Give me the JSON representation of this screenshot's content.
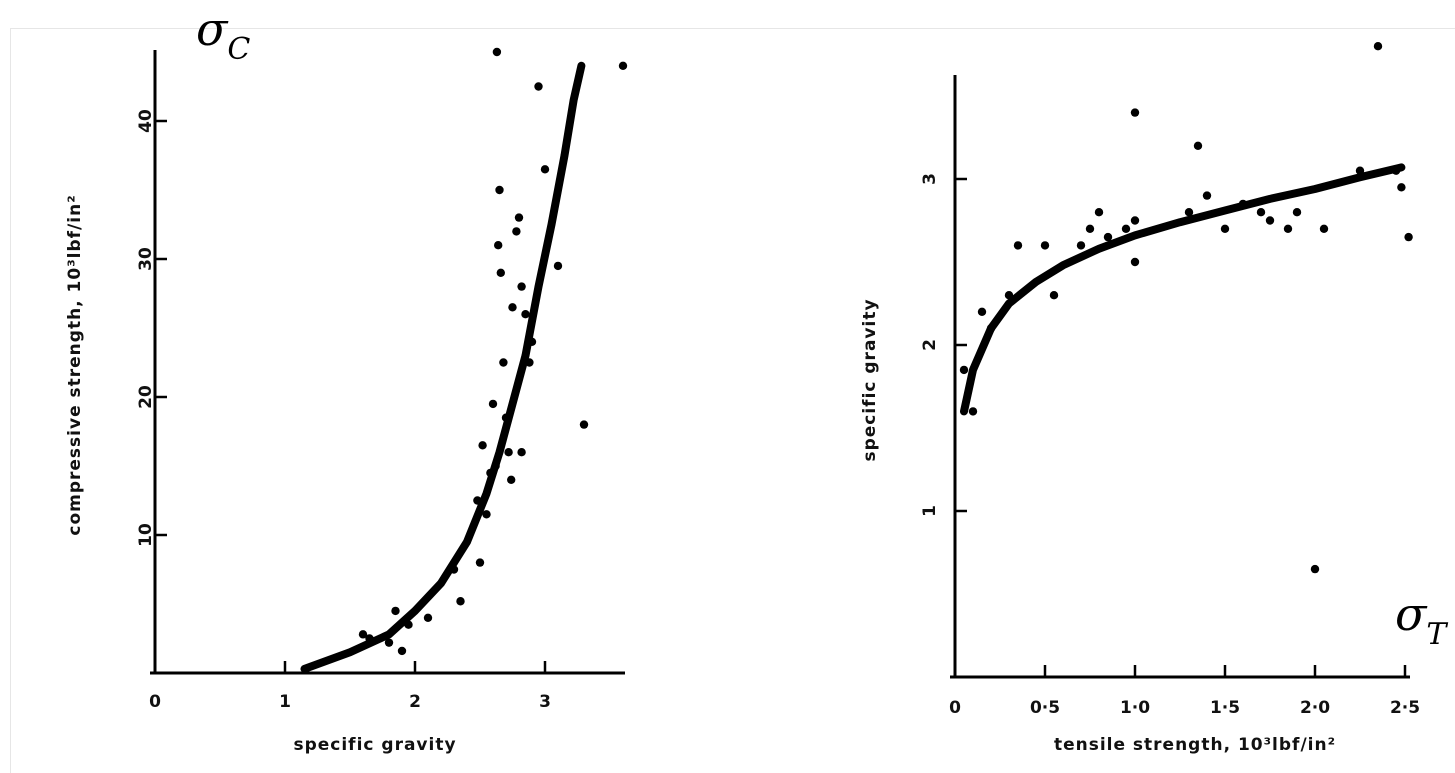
{
  "chart_data": [
    {
      "type": "scatter",
      "title": "",
      "corner_label": "σ",
      "corner_label_sub": "C",
      "xlabel": "specific gravity",
      "ylabel": "compressive strength, 10³lbf/in²",
      "xlim": [
        0,
        3.7
      ],
      "ylim": [
        0,
        45
      ],
      "x_ticks": [
        {
          "value": 0,
          "label": "0"
        },
        {
          "value": 1,
          "label": "1"
        },
        {
          "value": 2,
          "label": "2"
        },
        {
          "value": 3,
          "label": "3"
        }
      ],
      "y_ticks": [
        {
          "value": 10,
          "label": "10"
        },
        {
          "value": 20,
          "label": "20"
        },
        {
          "value": 30,
          "label": "30"
        },
        {
          "value": 40,
          "label": "40"
        }
      ],
      "grid": false,
      "series": [
        {
          "values": [
            [
              1.6,
              2.8
            ],
            [
              1.65,
              2.5
            ],
            [
              1.8,
              2.2
            ],
            [
              1.85,
              4.5
            ],
            [
              1.9,
              1.6
            ],
            [
              1.95,
              3.5
            ],
            [
              2.1,
              4.0
            ],
            [
              2.3,
              7.5
            ],
            [
              2.35,
              5.2
            ],
            [
              2.5,
              8.0
            ],
            [
              2.48,
              12.5
            ],
            [
              2.52,
              16.5
            ],
            [
              2.55,
              11.5
            ],
            [
              2.58,
              14.5
            ],
            [
              2.6,
              19.5
            ],
            [
              2.62,
              15.0
            ],
            [
              2.63,
              45.0
            ],
            [
              2.65,
              35.0
            ],
            [
              2.64,
              31.0
            ],
            [
              2.66,
              29.0
            ],
            [
              2.68,
              22.5
            ],
            [
              2.7,
              18.5
            ],
            [
              2.72,
              16.0
            ],
            [
              2.74,
              14.0
            ],
            [
              2.75,
              26.5
            ],
            [
              2.78,
              32.0
            ],
            [
              2.8,
              33.0
            ],
            [
              2.82,
              28.0
            ],
            [
              2.85,
              26.0
            ],
            [
              2.88,
              22.5
            ],
            [
              2.82,
              16.0
            ],
            [
              2.9,
              24.0
            ],
            [
              2.95,
              42.5
            ],
            [
              3.0,
              36.5
            ],
            [
              3.1,
              29.5
            ],
            [
              3.3,
              18.0
            ],
            [
              3.6,
              44.0
            ]
          ]
        }
      ],
      "fit_curve": [
        [
          1.15,
          0.3
        ],
        [
          1.5,
          1.5
        ],
        [
          1.8,
          2.8
        ],
        [
          2.0,
          4.5
        ],
        [
          2.2,
          6.5
        ],
        [
          2.4,
          9.5
        ],
        [
          2.55,
          13.0
        ],
        [
          2.65,
          16.0
        ],
        [
          2.75,
          19.5
        ],
        [
          2.85,
          23.0
        ],
        [
          2.95,
          28.0
        ],
        [
          3.05,
          32.5
        ],
        [
          3.15,
          37.5
        ],
        [
          3.22,
          41.5
        ],
        [
          3.28,
          44.0
        ]
      ]
    },
    {
      "type": "scatter",
      "title": "",
      "corner_label": "σ",
      "corner_label_sub": "T",
      "xlabel": "tensile strength, 10³lbf/in²",
      "ylabel": "specific gravity",
      "xlim": [
        0,
        2.5
      ],
      "ylim": [
        0,
        3.8
      ],
      "x_ticks": [
        {
          "value": 0,
          "label": "0"
        },
        {
          "value": 0.5,
          "label": "0·5"
        },
        {
          "value": 1.0,
          "label": "1·0"
        },
        {
          "value": 1.5,
          "label": "1·5"
        },
        {
          "value": 2.0,
          "label": "2·0"
        },
        {
          "value": 2.5,
          "label": "2·5"
        }
      ],
      "y_ticks": [
        {
          "value": 1,
          "label": "1"
        },
        {
          "value": 2,
          "label": "2"
        },
        {
          "value": 3,
          "label": "3"
        }
      ],
      "grid": false,
      "series": [
        {
          "values": [
            [
              0.05,
              1.85
            ],
            [
              0.1,
              1.6
            ],
            [
              0.15,
              2.2
            ],
            [
              0.2,
              2.1
            ],
            [
              0.3,
              2.3
            ],
            [
              0.35,
              2.6
            ],
            [
              0.5,
              2.6
            ],
            [
              0.55,
              2.3
            ],
            [
              0.7,
              2.6
            ],
            [
              0.75,
              2.7
            ],
            [
              0.8,
              2.8
            ],
            [
              0.85,
              2.65
            ],
            [
              0.95,
              2.7
            ],
            [
              1.0,
              2.75
            ],
            [
              1.0,
              2.5
            ],
            [
              1.0,
              3.4
            ],
            [
              1.3,
              2.8
            ],
            [
              1.35,
              3.2
            ],
            [
              1.4,
              2.9
            ],
            [
              1.5,
              2.7
            ],
            [
              1.6,
              2.85
            ],
            [
              1.7,
              2.8
            ],
            [
              1.75,
              2.75
            ],
            [
              1.85,
              2.7
            ],
            [
              1.9,
              2.8
            ],
            [
              2.0,
              0.65
            ],
            [
              2.05,
              2.7
            ],
            [
              2.25,
              3.05
            ],
            [
              2.35,
              3.8
            ],
            [
              2.45,
              3.05
            ],
            [
              2.48,
              2.95
            ],
            [
              2.52,
              2.65
            ]
          ]
        }
      ],
      "fit_curve": [
        [
          0.05,
          1.6
        ],
        [
          0.1,
          1.85
        ],
        [
          0.2,
          2.1
        ],
        [
          0.3,
          2.25
        ],
        [
          0.45,
          2.38
        ],
        [
          0.6,
          2.48
        ],
        [
          0.8,
          2.58
        ],
        [
          1.0,
          2.66
        ],
        [
          1.25,
          2.74
        ],
        [
          1.5,
          2.81
        ],
        [
          1.75,
          2.88
        ],
        [
          2.0,
          2.94
        ],
        [
          2.25,
          3.01
        ],
        [
          2.48,
          3.07
        ]
      ]
    }
  ]
}
